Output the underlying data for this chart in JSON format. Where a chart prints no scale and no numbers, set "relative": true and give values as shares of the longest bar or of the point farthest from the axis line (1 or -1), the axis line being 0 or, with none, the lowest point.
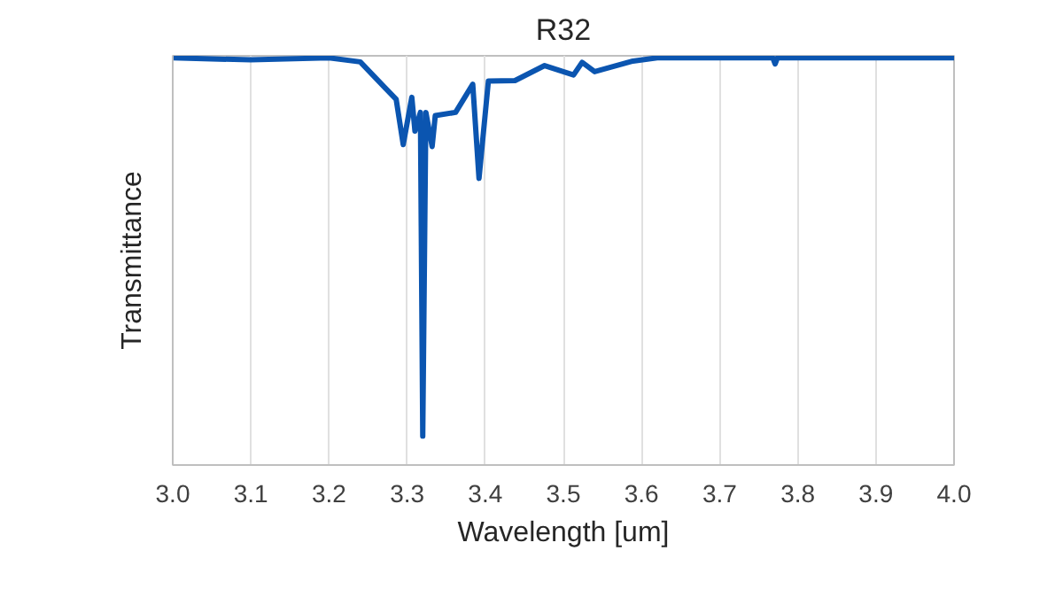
{
  "chart_data": {
    "type": "line",
    "title": "R32",
    "xlabel": "Wavelength [um]",
    "ylabel": "Transmittance",
    "relative": true,
    "xlim": [
      3.0,
      4.0
    ],
    "xticks": [
      {
        "value": 3.0,
        "label": "3.0"
      },
      3.1,
      3.2,
      3.3,
      3.4,
      3.5,
      3.6,
      3.7,
      3.8,
      3.9,
      {
        "value": 4.0,
        "label": "4.0"
      }
    ],
    "grid": "x",
    "series": [
      {
        "color": "#0b55b0",
        "x": [
          3.0,
          3.1,
          3.2,
          3.24,
          3.272,
          3.286,
          3.295,
          3.306,
          3.31,
          3.317,
          3.32,
          3.324,
          3.332,
          3.336,
          3.362,
          3.384,
          3.392,
          3.404,
          3.438,
          3.476,
          3.513,
          3.524,
          3.54,
          3.589,
          3.62,
          3.7,
          3.768,
          3.771,
          3.774,
          3.85,
          4.0
        ],
        "values": [
          1.0,
          0.995,
          1.0,
          0.99,
          0.926,
          0.898,
          0.787,
          0.903,
          0.82,
          0.866,
          0.071,
          0.866,
          0.782,
          0.858,
          0.866,
          0.935,
          0.704,
          0.943,
          0.944,
          0.981,
          0.958,
          0.989,
          0.966,
          0.992,
          1.0,
          1.0,
          1.0,
          0.985,
          1.0,
          1.0,
          1.0
        ]
      }
    ]
  }
}
